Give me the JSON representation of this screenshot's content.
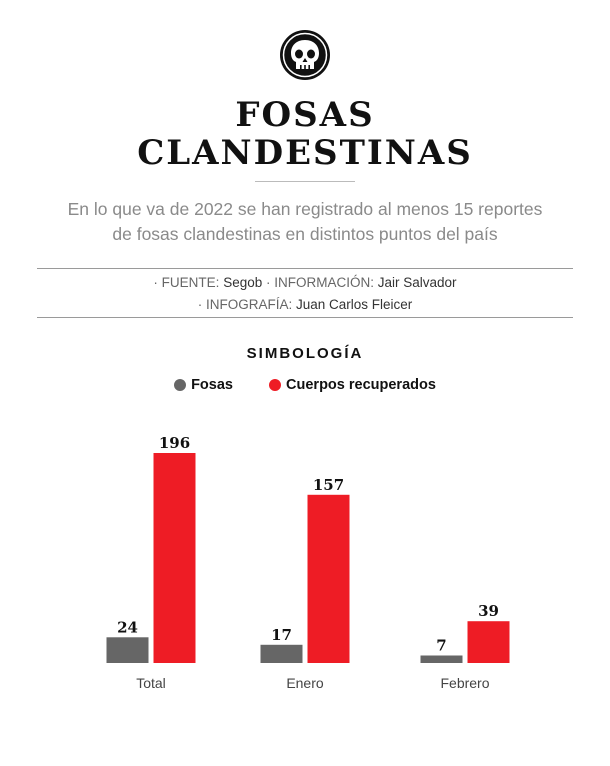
{
  "header": {
    "icon": "skull-icon",
    "title_line1": "FOSAS",
    "title_line2": "CLANDESTINAS",
    "subtitle_line1": "En lo que va de 2022 se han registrado al menos 15 reportes",
    "subtitle_line2": "de fosas clandestinas en distintos puntos del país"
  },
  "credits": {
    "source_key": "· FUENTE:",
    "source_value": "Segob",
    "info_key": "· INFORMACIÓN:",
    "info_value": "Jair Salvador",
    "graphics_key": "· INFOGRAFÍA:",
    "graphics_value": "Juan Carlos Fleicer"
  },
  "legend": {
    "title": "SIMBOLOGÍA",
    "items": [
      {
        "label": "Fosas",
        "color": "#666666"
      },
      {
        "label": "Cuerpos recuperados",
        "color": "#ee1c25"
      }
    ]
  },
  "chart_data": {
    "type": "bar",
    "categories": [
      "Total",
      "Enero",
      "Febrero"
    ],
    "series": [
      {
        "name": "Fosas",
        "values": [
          24,
          17,
          7
        ],
        "color": "#666666"
      },
      {
        "name": "Cuerpos recuperados",
        "values": [
          196,
          157,
          39
        ],
        "color": "#ee1c25"
      }
    ],
    "title": "",
    "xlabel": "",
    "ylabel": "",
    "ylim": [
      0,
      196
    ],
    "grid": false,
    "legend_position": "top"
  }
}
